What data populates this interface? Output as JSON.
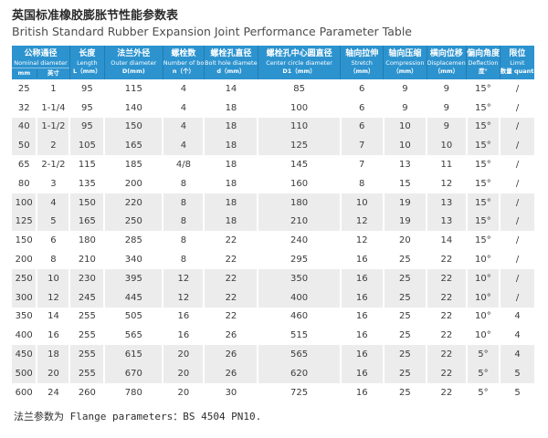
{
  "page": {
    "title_zh": "英国标准橡胶膨胀节性能参数表",
    "title_en": "British Standard Rubber Expansion Joint Performance Parameter Table",
    "footer": "法兰参数为 Flange parameters：BS 4504 PN10."
  },
  "colors": {
    "header_bg": "#2c93cf",
    "header_text": "#ffffff",
    "stripe_bg": "#ececec",
    "body_text": "#3b3b3b"
  },
  "table": {
    "header": {
      "nominal": {
        "zh": "公称通径",
        "en": "Nominal diameter",
        "sub_mm": "mm",
        "sub_inch": "英寸"
      },
      "columns": [
        {
          "zh": "长度",
          "en": "Length",
          "unit": "L（mm）"
        },
        {
          "zh": "法兰外径",
          "en": "Outer diameter",
          "unit": "D(mm)"
        },
        {
          "zh": "螺栓数",
          "en": "Number of bolts",
          "unit": "n（个）"
        },
        {
          "zh": "螺栓孔直径",
          "en": "Bolt hole diameter",
          "unit": "d（mm）"
        },
        {
          "zh": "螺栓孔中心圆直径",
          "en": "Center circle diameter",
          "unit": "D1（mm）"
        },
        {
          "zh": "轴向拉伸",
          "en": "Stretch",
          "unit": "（mm）"
        },
        {
          "zh": "轴向压缩",
          "en": "Compression",
          "unit": "（mm）"
        },
        {
          "zh": "横向位移",
          "en": "Displacement",
          "unit": "（mm）"
        },
        {
          "zh": "偏向角度",
          "en": "Deflection",
          "unit": "度°"
        },
        {
          "zh": "限位",
          "en": "Limit",
          "unit": "数量 quantity"
        }
      ]
    },
    "rows": [
      [
        "25",
        "1",
        "95",
        "115",
        "4",
        "14",
        "85",
        "6",
        "9",
        "9",
        "15°",
        "/"
      ],
      [
        "32",
        "1-1/4",
        "95",
        "140",
        "4",
        "18",
        "100",
        "6",
        "9",
        "9",
        "15°",
        "/"
      ],
      [
        "40",
        "1-1/2",
        "95",
        "150",
        "4",
        "18",
        "110",
        "6",
        "10",
        "9",
        "15°",
        "/"
      ],
      [
        "50",
        "2",
        "105",
        "165",
        "4",
        "18",
        "125",
        "7",
        "10",
        "10",
        "15°",
        "/"
      ],
      [
        "65",
        "2-1/2",
        "115",
        "185",
        "4/8",
        "18",
        "145",
        "7",
        "13",
        "11",
        "15°",
        "/"
      ],
      [
        "80",
        "3",
        "135",
        "200",
        "8",
        "18",
        "160",
        "8",
        "15",
        "12",
        "15°",
        "/"
      ],
      [
        "100",
        "4",
        "150",
        "220",
        "8",
        "18",
        "180",
        "10",
        "19",
        "13",
        "15°",
        "/"
      ],
      [
        "125",
        "5",
        "165",
        "250",
        "8",
        "18",
        "210",
        "12",
        "19",
        "13",
        "15°",
        "/"
      ],
      [
        "150",
        "6",
        "180",
        "285",
        "8",
        "22",
        "240",
        "12",
        "20",
        "14",
        "15°",
        "/"
      ],
      [
        "200",
        "8",
        "210",
        "340",
        "8",
        "22",
        "295",
        "16",
        "25",
        "22",
        "10°",
        "/"
      ],
      [
        "250",
        "10",
        "230",
        "395",
        "12",
        "22",
        "350",
        "16",
        "25",
        "22",
        "10°",
        "/"
      ],
      [
        "300",
        "12",
        "245",
        "445",
        "12",
        "22",
        "400",
        "16",
        "25",
        "22",
        "10°",
        "/"
      ],
      [
        "350",
        "14",
        "255",
        "505",
        "16",
        "22",
        "460",
        "16",
        "25",
        "22",
        "10°",
        "4"
      ],
      [
        "400",
        "16",
        "255",
        "565",
        "16",
        "26",
        "515",
        "16",
        "25",
        "22",
        "10°",
        "4"
      ],
      [
        "450",
        "18",
        "255",
        "615",
        "20",
        "26",
        "565",
        "16",
        "25",
        "22",
        "5°",
        "4"
      ],
      [
        "500",
        "20",
        "255",
        "670",
        "20",
        "26",
        "620",
        "16",
        "25",
        "22",
        "5°",
        "5"
      ],
      [
        "600",
        "24",
        "260",
        "780",
        "20",
        "30",
        "725",
        "16",
        "25",
        "22",
        "5°",
        "5"
      ]
    ]
  }
}
